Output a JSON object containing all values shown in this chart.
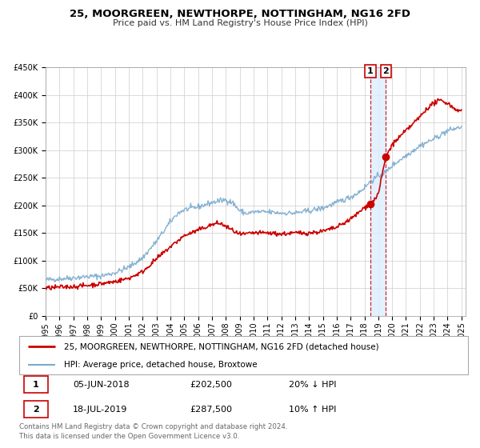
{
  "title": "25, MOORGREEN, NEWTHORPE, NOTTINGHAM, NG16 2FD",
  "subtitle": "Price paid vs. HM Land Registry's House Price Index (HPI)",
  "legend_label_1": "25, MOORGREEN, NEWTHORPE, NOTTINGHAM, NG16 2FD (detached house)",
  "legend_label_2": "HPI: Average price, detached house, Broxtowe",
  "annotation_1_date": "05-JUN-2018",
  "annotation_1_price": "£202,500",
  "annotation_1_hpi": "20% ↓ HPI",
  "annotation_2_date": "18-JUL-2019",
  "annotation_2_price": "£287,500",
  "annotation_2_hpi": "10% ↑ HPI",
  "footer": "Contains HM Land Registry data © Crown copyright and database right 2024.\nThis data is licensed under the Open Government Licence v3.0.",
  "line1_color": "#cc0000",
  "line2_color": "#7aaace",
  "marker_color": "#cc0000",
  "dashed_line_color": "#cc0000",
  "highlight_color": "#ddeeff",
  "anno_box_color": "#cc0000",
  "background_color": "#ffffff",
  "grid_color": "#cccccc",
  "ylim": [
    0,
    450000
  ],
  "xlim_start": 1995,
  "xlim_end": 2025.3,
  "event1_x": 2018.43,
  "event1_y": 202500,
  "event2_x": 2019.54,
  "event2_y": 287500,
  "title_fontsize": 9.5,
  "subtitle_fontsize": 8,
  "tick_fontsize": 7,
  "legend_fontsize": 7.5,
  "table_fontsize": 8,
  "footer_fontsize": 6.2
}
